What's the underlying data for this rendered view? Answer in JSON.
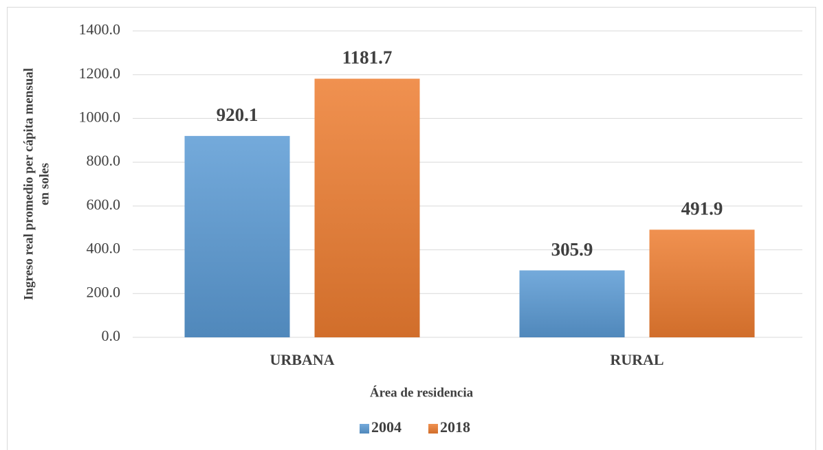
{
  "chart_data": {
    "type": "bar",
    "categories": [
      "URBANA",
      "RURAL"
    ],
    "series": [
      {
        "name": "2004",
        "color": "#5b9bd5",
        "values": [
          920.1,
          305.9
        ]
      },
      {
        "name": "2018",
        "color": "#ed7d31",
        "values": [
          1181.7,
          491.9
        ]
      }
    ],
    "ylim": [
      0,
      1400
    ],
    "yticks": [
      {
        "value": 0,
        "label": "0.0"
      },
      {
        "value": 200,
        "label": "200.0"
      },
      {
        "value": 400,
        "label": "400.0"
      },
      {
        "value": 600,
        "label": "600.0"
      },
      {
        "value": 800,
        "label": "800.0"
      },
      {
        "value": 1000,
        "label": "1000.0"
      },
      {
        "value": 1200,
        "label": "1200.0"
      },
      {
        "value": 1400,
        "label": "1400.0"
      }
    ],
    "xlabel": "Área de residencia",
    "ylabel": [
      "Ingreso real promedio per cápita mensual",
      "en soles"
    ],
    "grid": true,
    "legend": "bottom"
  }
}
